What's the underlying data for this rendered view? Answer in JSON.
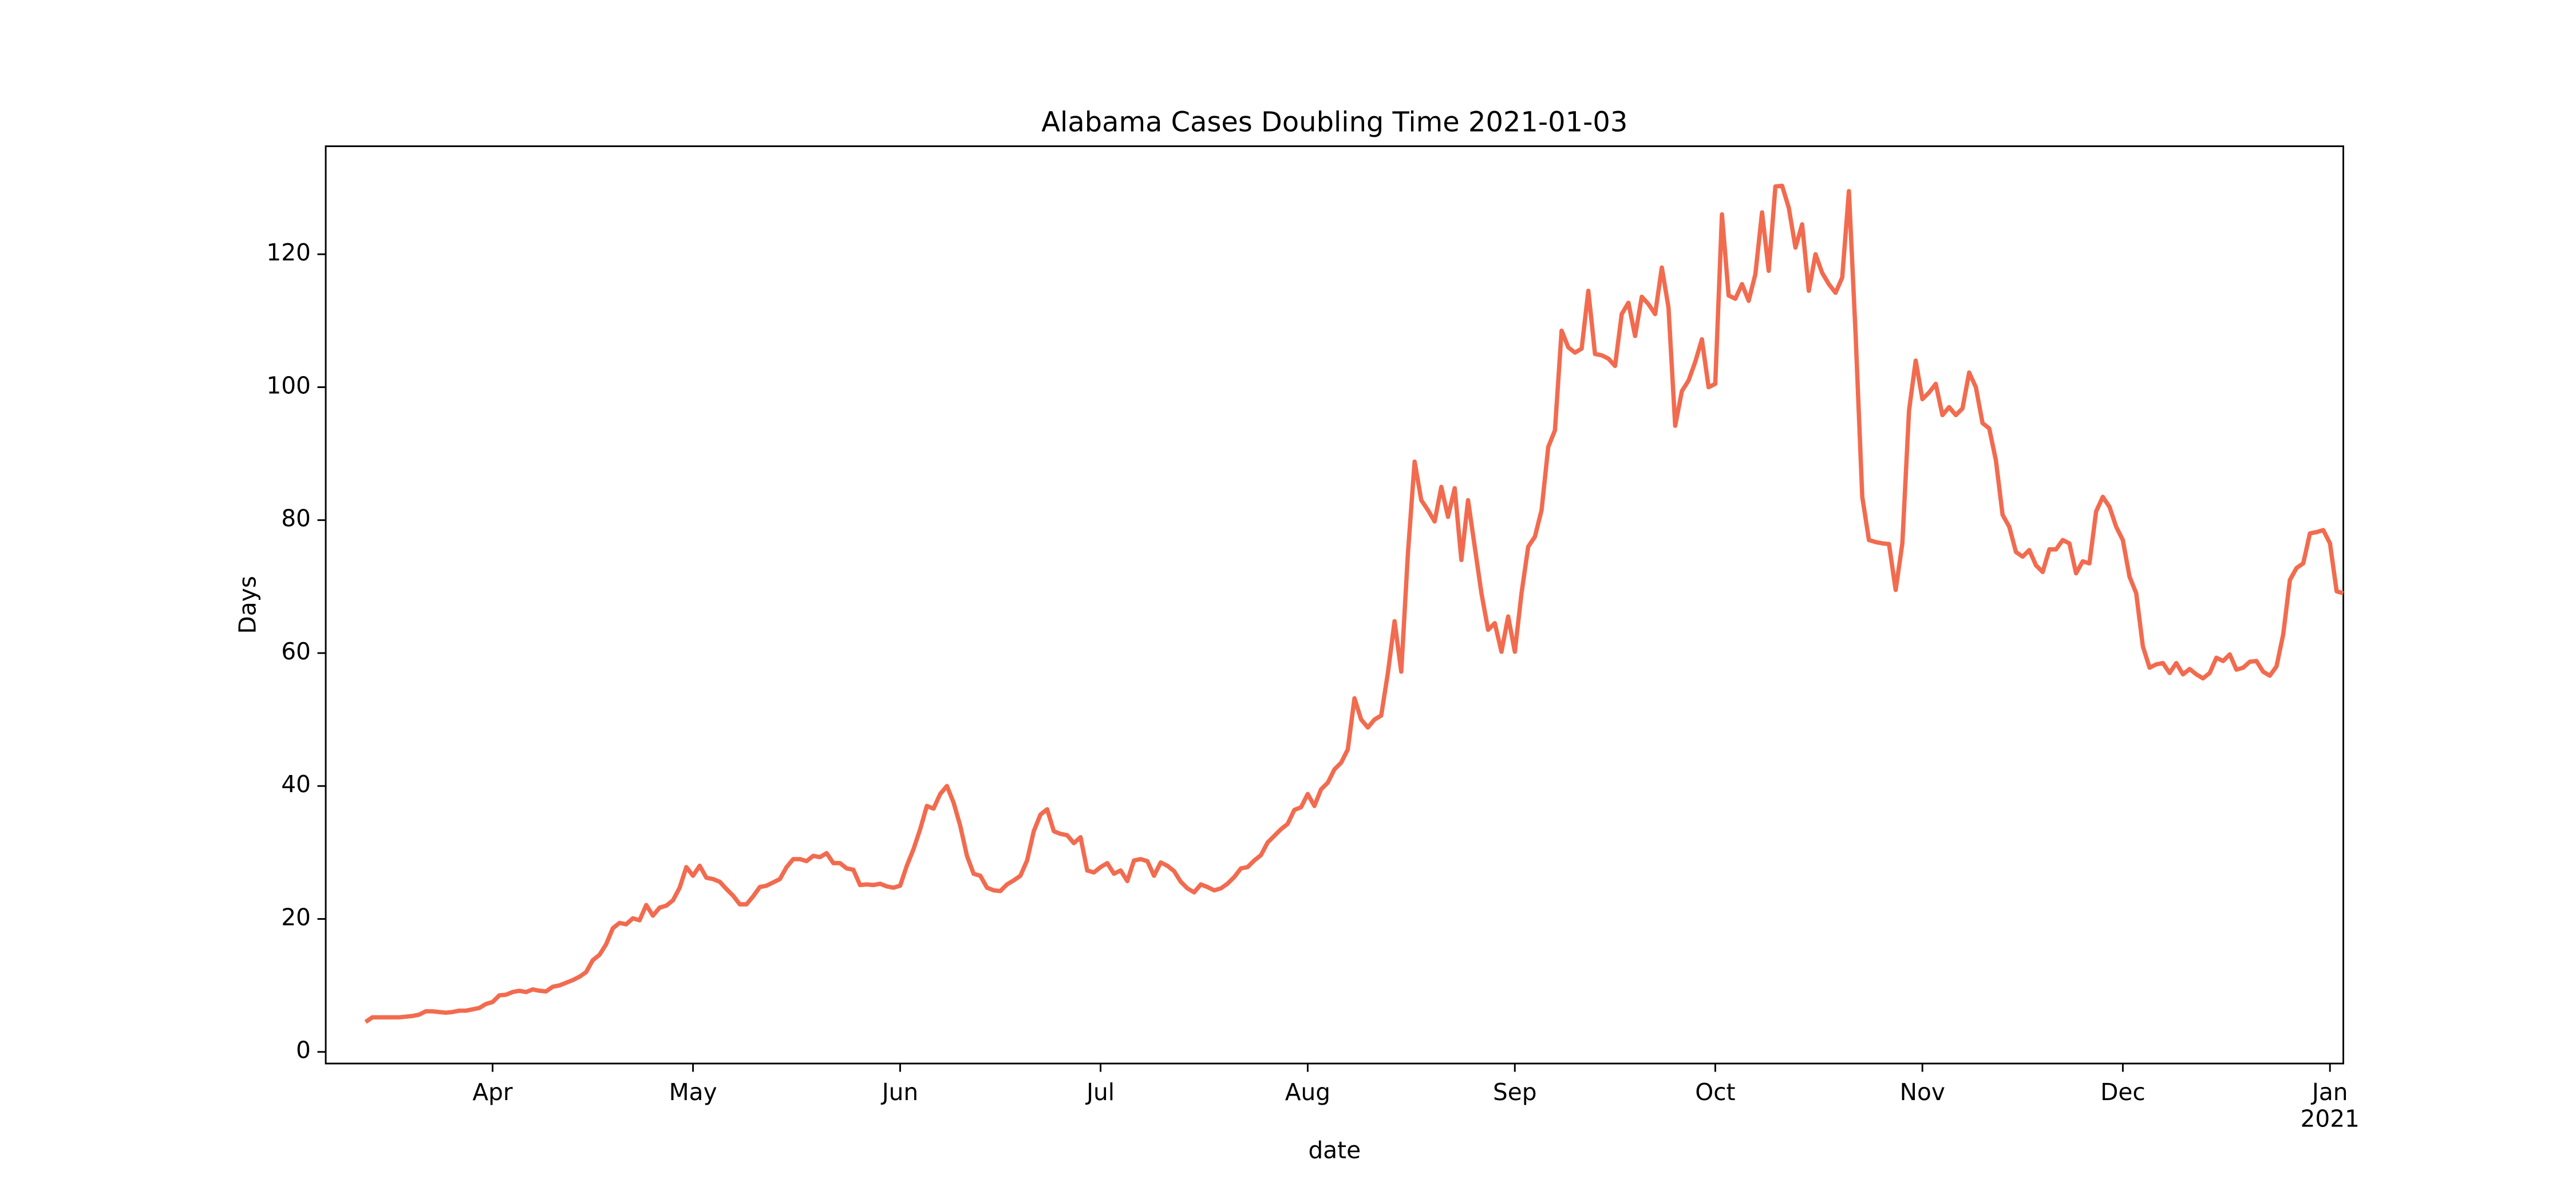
{
  "chart_data": {
    "type": "line",
    "title": "Alabama Cases Doubling Time 2021-01-03",
    "xlabel": "date",
    "ylabel": "Days",
    "color": "#f26b4f",
    "categories": [
      null,
      null,
      null,
      null,
      null,
      null,
      null,
      null,
      null,
      null,
      null,
      null,
      null,
      null,
      null,
      null,
      null,
      null,
      null,
      "Apr",
      null,
      null,
      null,
      null,
      null,
      null,
      null,
      null,
      null,
      null,
      null,
      null,
      null,
      null,
      null,
      null,
      null,
      null,
      null,
      null,
      null,
      null,
      null,
      null,
      null,
      null,
      null,
      null,
      null,
      "May",
      null,
      null,
      null,
      null,
      null,
      null,
      null,
      null,
      null,
      null,
      null,
      null,
      null,
      null,
      null,
      null,
      null,
      null,
      null,
      null,
      null,
      null,
      null,
      null,
      null,
      null,
      null,
      null,
      null,
      null,
      "Jun",
      null,
      null,
      null,
      null,
      null,
      null,
      null,
      null,
      null,
      null,
      null,
      null,
      null,
      null,
      null,
      null,
      null,
      null,
      null,
      null,
      null,
      null,
      null,
      null,
      null,
      null,
      null,
      null,
      null,
      "Jul",
      null,
      null,
      null,
      null,
      null,
      null,
      null,
      null,
      null,
      null,
      null,
      null,
      null,
      null,
      null,
      null,
      null,
      null,
      null,
      null,
      null,
      null,
      null,
      null,
      null,
      null,
      null,
      null,
      null,
      null,
      "Aug",
      null,
      null,
      null,
      null,
      null,
      null,
      null,
      null,
      null,
      null,
      null,
      null,
      null,
      null,
      null,
      null,
      null,
      null,
      null,
      null,
      null,
      null,
      null,
      null,
      null,
      null,
      null,
      null,
      null,
      null,
      "Sep",
      null,
      null,
      null,
      null,
      null,
      null,
      null,
      null,
      null,
      null,
      null,
      null,
      null,
      null,
      null,
      null,
      null,
      null,
      null,
      null,
      null,
      null,
      null,
      null,
      null,
      null,
      null,
      null,
      null,
      "Oct",
      null,
      null,
      null,
      null,
      null,
      null,
      null,
      null,
      null,
      null,
      null,
      null,
      null,
      null,
      null,
      null,
      null,
      null,
      null,
      null,
      null,
      null,
      null,
      null,
      null,
      null,
      null,
      null,
      null,
      null,
      "Nov",
      null,
      null,
      null,
      null,
      null,
      null,
      null,
      null,
      null,
      null,
      null,
      null,
      null,
      null,
      null,
      null,
      null,
      null,
      null,
      null,
      null,
      null,
      null,
      null,
      null,
      null,
      null,
      null,
      null,
      "Dec",
      null,
      null,
      null,
      null,
      null,
      null,
      null,
      null,
      null,
      null,
      null,
      null,
      null,
      null,
      null,
      null,
      null,
      null,
      null,
      null,
      null,
      null,
      null,
      null,
      null,
      null,
      null,
      null,
      null,
      null,
      "Jan\n2021",
      null,
      null
    ],
    "values": [
      4.5,
      5.2,
      5.2,
      5.2,
      5.2,
      5.2,
      5.3,
      5.4,
      5.6,
      6.1,
      6.1,
      6.0,
      5.9,
      6.0,
      6.2,
      6.2,
      6.4,
      6.6,
      7.2,
      7.5,
      8.5,
      8.6,
      9.0,
      9.2,
      9.0,
      9.4,
      9.2,
      9.1,
      9.8,
      10.0,
      10.4,
      10.8,
      11.3,
      12.0,
      13.8,
      14.6,
      16.2,
      18.6,
      19.4,
      19.2,
      20.1,
      19.8,
      22.1,
      20.5,
      21.7,
      22.0,
      22.8,
      24.7,
      27.8,
      26.5,
      28.0,
      26.2,
      26.0,
      25.6,
      24.5,
      23.5,
      22.2,
      22.2,
      23.4,
      24.8,
      25.0,
      25.5,
      26.0,
      27.8,
      29.0,
      29.0,
      28.7,
      29.5,
      29.3,
      29.9,
      28.4,
      28.4,
      27.6,
      27.4,
      25.1,
      25.2,
      25.1,
      25.3,
      24.9,
      24.7,
      25.0,
      28.0,
      30.5,
      33.5,
      37.0,
      36.6,
      38.8,
      40.0,
      37.5,
      34.0,
      29.5,
      26.8,
      26.5,
      24.7,
      24.3,
      24.2,
      25.2,
      25.8,
      26.5,
      28.8,
      33.2,
      35.7,
      36.5,
      33.2,
      32.8,
      32.6,
      31.4,
      32.3,
      27.3,
      27.0,
      27.8,
      28.4,
      26.8,
      27.3,
      25.7,
      28.8,
      29.0,
      28.7,
      26.5,
      28.5,
      28.0,
      27.2,
      25.6,
      24.6,
      24.0,
      25.2,
      24.8,
      24.3,
      24.6,
      25.3,
      26.3,
      27.6,
      27.8,
      28.8,
      29.6,
      31.5,
      32.5,
      33.5,
      34.3,
      36.4,
      36.8,
      38.8,
      37.0,
      39.5,
      40.5,
      42.5,
      43.5,
      45.5,
      53.2,
      50.0,
      48.8,
      50.0,
      50.6,
      57.0,
      64.8,
      57.2,
      75.0,
      88.8,
      83.0,
      81.5,
      79.8,
      85.0,
      80.5,
      84.8,
      74.0,
      83.0,
      76.0,
      69.0,
      63.5,
      64.5,
      60.2,
      65.5,
      60.2,
      69.0,
      76.0,
      77.5,
      81.5,
      91.0,
      93.5,
      108.5,
      106.0,
      105.2,
      105.8,
      114.5,
      105.0,
      104.8,
      104.3,
      103.2,
      111.0,
      112.7,
      107.7,
      113.6,
      112.5,
      111.0,
      118.0,
      112.0,
      94.2,
      99.4,
      101.0,
      103.8,
      107.2,
      100.0,
      100.5,
      126.0,
      113.8,
      113.3,
      115.5,
      113.0,
      117.0,
      126.3,
      117.5,
      130.2,
      130.3,
      127.0,
      121.0,
      124.5,
      114.5,
      120.0,
      117.2,
      115.5,
      114.2,
      116.5,
      129.5,
      108.0,
      83.5,
      77.0,
      76.7,
      76.5,
      76.4,
      69.5,
      76.5,
      96.5,
      104.0,
      98.2,
      99.2,
      100.5,
      95.8,
      97.0,
      95.8,
      96.8,
      102.2,
      100.0,
      94.6,
      93.8,
      89.0,
      80.8,
      79.0,
      75.2,
      74.5,
      75.5,
      73.2,
      72.2,
      75.6,
      75.6,
      77.0,
      76.5,
      72.0,
      73.8,
      73.5,
      81.3,
      83.5,
      82.0,
      79.0,
      77.0,
      71.5,
      69.0,
      61.0,
      57.8,
      58.3,
      58.5,
      57.0,
      58.5,
      56.8,
      57.6,
      56.8,
      56.2,
      57.0,
      59.3,
      58.8,
      59.8,
      57.5,
      57.8,
      58.7,
      58.8,
      57.2,
      56.6,
      58.0,
      62.8,
      71.0,
      72.8,
      73.5,
      78.0,
      78.2,
      78.5,
      76.5,
      69.3,
      69.0
    ],
    "ylim": [
      -1.75,
      136.25
    ],
    "yticks": [
      0,
      20,
      40,
      60,
      80,
      100,
      120
    ],
    "grid": false
  }
}
